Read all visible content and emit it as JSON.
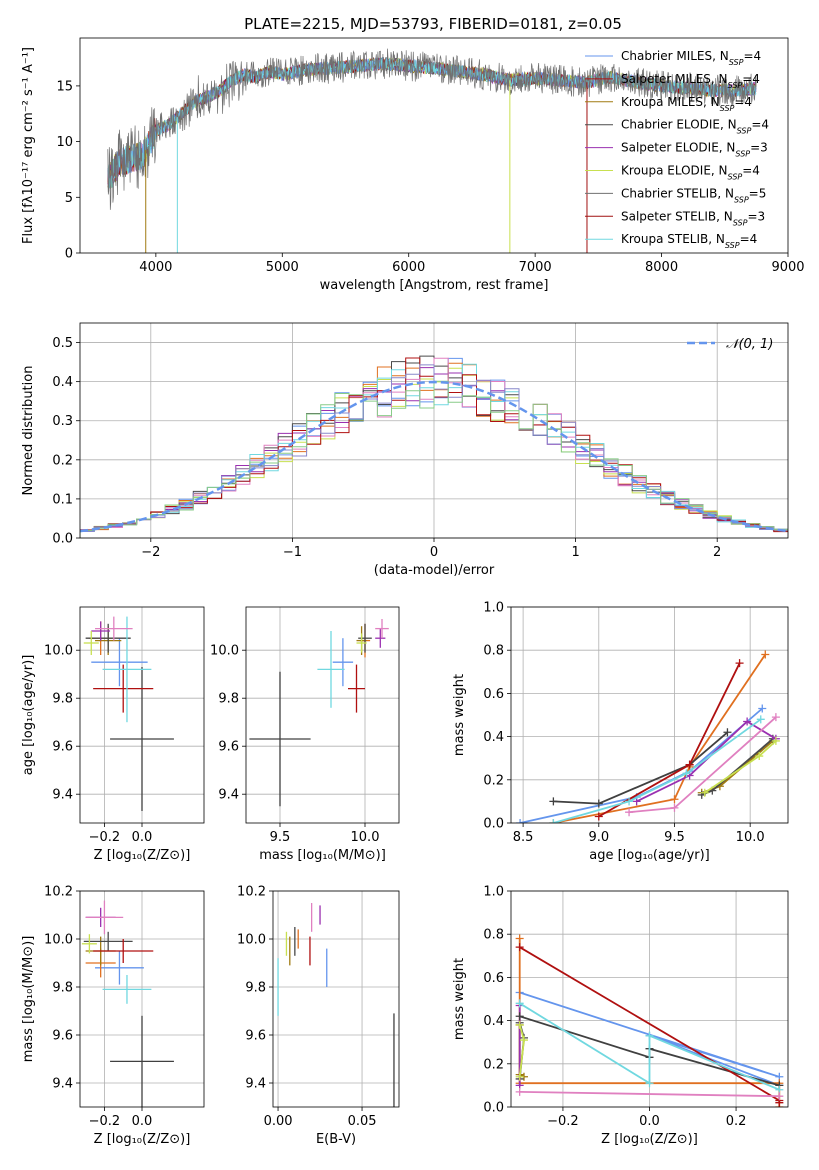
{
  "title": "PLATE=2215, MJD=53793, FIBERID=0181, z=0.05",
  "colors": [
    "#6495ed",
    "#e07020",
    "#a07a10",
    "#4a4a4a",
    "#9a30b0",
    "#c8e050",
    "#404040",
    "#b01010",
    "#70d8e0",
    "#e080c0"
  ],
  "chart_data": [
    {
      "id": "spectrum",
      "type": "line",
      "title": "PLATE=2215, MJD=53793, FIBERID=0181, z=0.05",
      "xlabel": "wavelength [Angstrom, rest frame]",
      "ylabel": "Flux [fλ10⁻¹⁷ erg cm⁻² s⁻¹ A⁻¹]",
      "xlim": [
        3400,
        9000
      ],
      "ylim": [
        0,
        19.3
      ],
      "xticks": [
        4000,
        5000,
        6000,
        7000,
        8000,
        9000
      ],
      "yticks": [
        0,
        5,
        10,
        15
      ],
      "grid": false,
      "legend_position": "top-right",
      "spectrum_profile_x": [
        3620,
        3700,
        3800,
        3900,
        4000,
        4100,
        4200,
        4300,
        4400,
        4500,
        4600,
        4700,
        4800,
        4900,
        5000,
        5200,
        5400,
        5600,
        5800,
        6000,
        6200,
        6400,
        6600,
        6800,
        7000,
        7200,
        7400,
        7600,
        7800,
        8000,
        8200,
        8400,
        8600,
        8750
      ],
      "spectrum_profile_y": [
        6.5,
        8.0,
        8.5,
        8.8,
        11.0,
        11.5,
        12.5,
        13.5,
        14.0,
        14.5,
        15.5,
        16.0,
        15.8,
        16.3,
        16.0,
        16.5,
        16.6,
        16.8,
        17.0,
        16.8,
        16.6,
        16.3,
        16.0,
        15.5,
        15.7,
        15.5,
        15.3,
        15.8,
        15.3,
        15.0,
        14.8,
        14.6,
        14.6,
        14.8
      ],
      "series": [
        {
          "name": "Chabrier MILES, N",
          "sub": "SSP",
          "n": "=4"
        },
        {
          "name": "Salpeter MILES, N",
          "sub": "SSP",
          "n": "=4"
        },
        {
          "name": "Kroupa MILES, N",
          "sub": "SSP",
          "n": "=4"
        },
        {
          "name": "Chabrier ELODIE, N",
          "sub": "SSP",
          "n": "=4"
        },
        {
          "name": "Salpeter ELODIE, N",
          "sub": "SSP",
          "n": "=3"
        },
        {
          "name": "Kroupa ELODIE, N",
          "sub": "SSP",
          "n": "=4"
        },
        {
          "name": "Chabrier STELIB, N",
          "sub": "SSP",
          "n": "=5"
        },
        {
          "name": "Salpeter STELIB, N",
          "sub": "SSP",
          "n": "=3"
        },
        {
          "name": "Kroupa STELIB, N",
          "sub": "SSP",
          "n": "=4"
        }
      ]
    },
    {
      "id": "residuals",
      "type": "line",
      "xlabel": "(data-model)/error",
      "ylabel": "Normed distribution",
      "xlim": [
        -2.5,
        2.5
      ],
      "ylim": [
        0,
        0.55
      ],
      "xticks": [
        -2,
        -1,
        0,
        1,
        2
      ],
      "yticks": [
        0.0,
        0.1,
        0.2,
        0.3,
        0.4,
        0.5
      ],
      "grid": true,
      "legend": "𝒩(0, 1)",
      "legend_position": "top-right",
      "bin_width": 0.1,
      "bin_start": -2.5
    },
    {
      "id": "age_vs_z",
      "type": "scatter",
      "xlabel": "Z [log₁₀(Z/Z⊙)]",
      "ylabel": "age  [log₁₀(age/yr)]",
      "xlim": [
        -0.33,
        0.33
      ],
      "ylim": [
        9.28,
        10.18
      ],
      "xticks": [
        -0.2,
        0.0
      ],
      "yticks": [
        9.4,
        9.6,
        9.8,
        10.0
      ],
      "grid": true,
      "points": [
        {
          "x": -0.12,
          "y": 9.95,
          "ex": 0.15,
          "ey": 0.1
        },
        {
          "x": -0.22,
          "y": 10.05,
          "ex": 0.06,
          "ey": 0.07
        },
        {
          "x": -0.18,
          "y": 10.04,
          "ex": 0.07,
          "ey": 0.06
        },
        {
          "x": -0.18,
          "y": 10.05,
          "ex": 0.12,
          "ey": 0.06
        },
        {
          "x": -0.22,
          "y": 10.08,
          "ex": 0.05,
          "ey": 0.04
        },
        {
          "x": -0.27,
          "y": 10.03,
          "ex": 0.04,
          "ey": 0.05
        },
        {
          "x": 0.0,
          "y": 9.63,
          "ex": 0.17,
          "ey": 0.3
        },
        {
          "x": -0.1,
          "y": 9.84,
          "ex": 0.16,
          "ey": 0.1
        },
        {
          "x": -0.08,
          "y": 9.92,
          "ex": 0.13,
          "ey": 0.22
        },
        {
          "x": -0.15,
          "y": 10.09,
          "ex": 0.1,
          "ey": 0.05
        }
      ]
    },
    {
      "id": "age_vs_mass",
      "type": "scatter",
      "xlabel": "mass [log₁₀(M/M⊙)]",
      "ylabel": "",
      "xlim": [
        9.3,
        10.2
      ],
      "ylim": [
        9.28,
        10.18
      ],
      "xticks": [
        9.5,
        10.0
      ],
      "yticks": [
        9.4,
        9.6,
        9.8,
        10.0
      ],
      "grid": true,
      "points": [
        {
          "x": 9.87,
          "y": 9.95,
          "ex": 0.06,
          "ey": 0.1
        },
        {
          "x": 10.0,
          "y": 10.04,
          "ex": 0.03,
          "ey": 0.07
        },
        {
          "x": 9.98,
          "y": 10.04,
          "ex": 0.03,
          "ey": 0.06
        },
        {
          "x": 10.0,
          "y": 10.05,
          "ex": 0.04,
          "ey": 0.06
        },
        {
          "x": 10.09,
          "y": 10.05,
          "ex": 0.03,
          "ey": 0.04
        },
        {
          "x": 9.98,
          "y": 10.03,
          "ex": 0.03,
          "ey": 0.04
        },
        {
          "x": 9.5,
          "y": 9.63,
          "ex": 0.18,
          "ey": 0.28
        },
        {
          "x": 9.95,
          "y": 9.84,
          "ex": 0.05,
          "ey": 0.1
        },
        {
          "x": 9.8,
          "y": 9.92,
          "ex": 0.08,
          "ey": 0.16
        },
        {
          "x": 10.1,
          "y": 10.09,
          "ex": 0.04,
          "ey": 0.04
        }
      ]
    },
    {
      "id": "mw_vs_age",
      "type": "line",
      "xlabel": "age  [log₁₀(age/yr)]",
      "ylabel": "mass weight",
      "xlim": [
        8.42,
        10.25
      ],
      "ylim": [
        0,
        1.0
      ],
      "xticks": [
        8.5,
        9.0,
        9.5,
        10.0
      ],
      "yticks": [
        0.0,
        0.2,
        0.4,
        0.6,
        0.8,
        1.0
      ],
      "grid": true,
      "series": [
        {
          "x": [
            8.48,
            9.25,
            9.6,
            10.08
          ],
          "y": [
            0.0,
            0.12,
            0.24,
            0.53
          ]
        },
        {
          "x": [
            8.7,
            9.5,
            9.6,
            10.1
          ],
          "y": [
            0.0,
            0.11,
            0.26,
            0.78
          ]
        },
        {
          "x": [
            9.68,
            9.8,
            10.15
          ],
          "y": [
            0.14,
            0.17,
            0.38
          ]
        },
        {
          "x": [
            9.68,
            9.75,
            10.15
          ],
          "y": [
            0.13,
            0.15,
            0.39
          ]
        },
        {
          "x": [
            9.25,
            9.6,
            9.98,
            10.17
          ],
          "y": [
            0.1,
            0.22,
            0.47,
            0.39
          ]
        },
        {
          "x": [
            9.7,
            10.06,
            10.17
          ],
          "y": [
            0.14,
            0.31,
            0.38
          ]
        },
        {
          "x": [
            8.7,
            9.0,
            9.6,
            9.85
          ],
          "y": [
            0.1,
            0.09,
            0.27,
            0.42
          ]
        },
        {
          "x": [
            9.0,
            9.6,
            9.93
          ],
          "y": [
            0.03,
            0.27,
            0.74
          ]
        },
        {
          "x": [
            8.7,
            9.2,
            9.58,
            10.07
          ],
          "y": [
            0.0,
            0.1,
            0.23,
            0.48
          ]
        },
        {
          "x": [
            9.2,
            9.5,
            10.17
          ],
          "y": [
            0.05,
            0.07,
            0.49
          ]
        }
      ]
    },
    {
      "id": "mass_vs_z",
      "type": "scatter",
      "xlabel": "Z [log₁₀(Z/Z⊙)]",
      "ylabel": "mass [log₁₀(M/M⊙)]",
      "xlim": [
        -0.33,
        0.33
      ],
      "ylim": [
        9.3,
        10.2
      ],
      "xticks": [
        -0.2,
        0.0
      ],
      "yticks": [
        9.4,
        9.6,
        9.8,
        10.0,
        10.2
      ],
      "grid": true,
      "points": [
        {
          "x": -0.12,
          "y": 9.88,
          "ex": 0.13,
          "ey": 0.07
        },
        {
          "x": -0.22,
          "y": 9.9,
          "ex": 0.08,
          "ey": 0.06
        },
        {
          "x": -0.22,
          "y": 9.95,
          "ex": 0.08,
          "ey": 0.06
        },
        {
          "x": -0.18,
          "y": 9.99,
          "ex": 0.13,
          "ey": 0.04
        },
        {
          "x": -0.22,
          "y": 10.09,
          "ex": 0.08,
          "ey": 0.04
        },
        {
          "x": -0.28,
          "y": 9.98,
          "ex": 0.04,
          "ey": 0.04
        },
        {
          "x": 0.0,
          "y": 9.49,
          "ex": 0.17,
          "ey": 0.19
        },
        {
          "x": -0.1,
          "y": 9.95,
          "ex": 0.16,
          "ey": 0.05
        },
        {
          "x": -0.08,
          "y": 9.79,
          "ex": 0.13,
          "ey": 0.06
        },
        {
          "x": -0.2,
          "y": 10.09,
          "ex": 0.1,
          "ey": 0.07
        }
      ]
    },
    {
      "id": "mass_vs_ebv",
      "type": "scatter",
      "xlabel": "E(B-V)",
      "ylabel": "",
      "xlim": [
        -0.003,
        0.072
      ],
      "ylim": [
        9.3,
        10.2
      ],
      "xticks": [
        0.0,
        0.05
      ],
      "yticks": [
        9.4,
        9.6,
        9.8,
        10.0,
        10.2
      ],
      "grid": true,
      "points": [
        {
          "x": 0.029,
          "y": 9.88,
          "ex": 0,
          "ey": 0.08
        },
        {
          "x": 0.012,
          "y": 10.0,
          "ex": 0,
          "ey": 0.04
        },
        {
          "x": 0.007,
          "y": 9.95,
          "ex": 0,
          "ey": 0.06
        },
        {
          "x": 0.01,
          "y": 9.99,
          "ex": 0,
          "ey": 0.06
        },
        {
          "x": 0.025,
          "y": 10.1,
          "ex": 0,
          "ey": 0.04
        },
        {
          "x": 0.005,
          "y": 9.98,
          "ex": 0,
          "ey": 0.05
        },
        {
          "x": 0.069,
          "y": 9.45,
          "ex": 0,
          "ey": 0.24
        },
        {
          "x": 0.019,
          "y": 9.95,
          "ex": 0,
          "ey": 0.06
        },
        {
          "x": 0.0,
          "y": 9.8,
          "ex": 0,
          "ey": 0.12
        },
        {
          "x": 0.02,
          "y": 10.09,
          "ex": 0,
          "ey": 0.06
        }
      ]
    },
    {
      "id": "mw_vs_z",
      "type": "line",
      "xlabel": "Z [log₁₀(Z/Z⊙)]",
      "ylabel": "mass weight",
      "xlim": [
        -0.32,
        0.32
      ],
      "ylim": [
        0,
        1.0
      ],
      "xticks": [
        -0.2,
        0.0,
        0.2
      ],
      "yticks": [
        0.0,
        0.2,
        0.4,
        0.6,
        0.8,
        1.0
      ],
      "grid": true,
      "series": [
        {
          "x": [
            -0.3,
            0.3,
            0.0,
            0.3
          ],
          "y": [
            0.53,
            0.14,
            0.33,
            0.1
          ]
        },
        {
          "x": [
            -0.3,
            -0.3,
            0.3,
            0.3
          ],
          "y": [
            0.78,
            0.11,
            0.11,
            0.0
          ]
        },
        {
          "x": [
            -0.3,
            -0.3,
            -0.29
          ],
          "y": [
            0.38,
            0.15,
            0.14
          ]
        },
        {
          "x": [
            -0.3,
            -0.29,
            -0.3
          ],
          "y": [
            0.39,
            0.32,
            0.13
          ]
        },
        {
          "x": [
            -0.3,
            -0.3
          ],
          "y": [
            0.47,
            0.1
          ]
        },
        {
          "x": [
            -0.3,
            -0.29,
            -0.3
          ],
          "y": [
            0.38,
            0.31,
            0.14
          ]
        },
        {
          "x": [
            -0.3,
            0.0,
            0.0,
            0.3
          ],
          "y": [
            0.42,
            0.23,
            0.27,
            0.1
          ]
        },
        {
          "x": [
            -0.3,
            0.3,
            0.3
          ],
          "y": [
            0.74,
            0.03,
            0.02
          ]
        },
        {
          "x": [
            -0.3,
            0.0,
            0.0,
            0.3
          ],
          "y": [
            0.48,
            0.11,
            0.33,
            0.08
          ]
        },
        {
          "x": [
            -0.3,
            0.3
          ],
          "y": [
            0.07,
            0.05
          ]
        }
      ]
    }
  ]
}
